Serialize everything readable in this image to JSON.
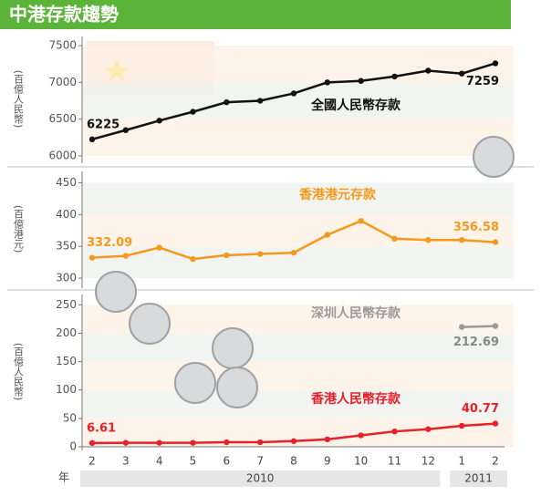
{
  "title": "中港存款趨勢",
  "chart_data": [
    {
      "type": "line",
      "ylabel": "(百億人民幣)",
      "ylim": [
        5950,
        7600
      ],
      "yticks": [
        6000,
        6500,
        7000,
        7500
      ],
      "series": [
        {
          "name": "全國人民幣存款",
          "color": "#111111",
          "values": [
            6225,
            6350,
            6480,
            6600,
            6730,
            6750,
            6850,
            7000,
            7020,
            7080,
            7160,
            7120,
            7259
          ],
          "value_labels": [
            "6225",
            null,
            null,
            null,
            null,
            null,
            null,
            null,
            null,
            null,
            null,
            null,
            "7259"
          ]
        }
      ]
    },
    {
      "type": "line",
      "ylabel": "(百億港元)",
      "ylim": [
        290,
        465
      ],
      "yticks": [
        300,
        350,
        400,
        450
      ],
      "series": [
        {
          "name": "香港港元存款",
          "color": "#f39a1e",
          "values": [
            332.09,
            335,
            348,
            330,
            336,
            338,
            340,
            368,
            390,
            362,
            360,
            360,
            356.58
          ],
          "value_labels": [
            "332.09",
            null,
            null,
            null,
            null,
            null,
            null,
            null,
            null,
            null,
            null,
            null,
            "356.58"
          ]
        }
      ]
    },
    {
      "type": "line",
      "ylabel": "(百億人民幣)",
      "ylim": [
        0,
        265
      ],
      "yticks": [
        0,
        50,
        100,
        150,
        200,
        250
      ],
      "categories": [
        "2",
        "3",
        "4",
        "5",
        "6",
        "7",
        "8",
        "9",
        "10",
        "11",
        "12",
        "1",
        "2"
      ],
      "x_label": "年",
      "year_groups": [
        {
          "label": "2010",
          "count": 11
        },
        {
          "label": "2011",
          "count": 2
        }
      ],
      "series": [
        {
          "name": "深圳人民幣存款",
          "color": "#9a9a9a",
          "values": [
            null,
            null,
            null,
            null,
            null,
            null,
            null,
            null,
            null,
            null,
            null,
            211,
            212.69
          ],
          "value_labels": [
            null,
            null,
            null,
            null,
            null,
            null,
            null,
            null,
            null,
            null,
            null,
            null,
            "212.69"
          ]
        },
        {
          "name": "香港人民幣存款",
          "color": "#e8202a",
          "values": [
            6.61,
            7,
            7,
            7,
            8,
            8,
            10,
            13,
            20,
            27,
            31,
            37,
            40.77
          ],
          "value_labels": [
            "6.61",
            null,
            null,
            null,
            null,
            null,
            null,
            null,
            null,
            null,
            null,
            null,
            "40.77"
          ]
        }
      ]
    }
  ]
}
